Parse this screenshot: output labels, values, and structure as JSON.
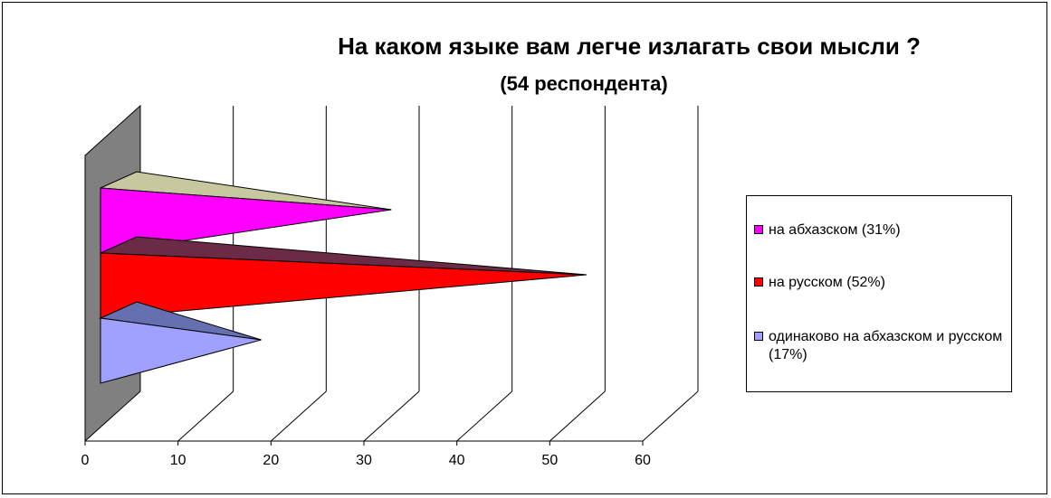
{
  "chart_data": {
    "type": "bar",
    "orientation": "horizontal",
    "style": "3d-cone",
    "title": "На каком языке вам легче излагать свои мысли ?",
    "subtitle": "(54 респондента)",
    "xlim": [
      0,
      60
    ],
    "x_ticks": [
      "0",
      "10",
      "20",
      "30",
      "40",
      "50",
      "60"
    ],
    "grid": true,
    "legend_position": "right",
    "series": [
      {
        "name": "на абхазском (31%)",
        "value": 31,
        "color": "#ff00ff",
        "top_color": "#c8c8a0"
      },
      {
        "name": "на русском (52%)",
        "value": 52,
        "color": "#ff0000",
        "top_color": "#6b2a46"
      },
      {
        "name": "одинаково на абхазском и русском (17%)",
        "value": 17,
        "color": "#a0a0ff",
        "top_color": "#6670b0"
      }
    ]
  },
  "legend": {
    "items": [
      {
        "label": "на абхазском (31%)",
        "color": "#ff00ff"
      },
      {
        "label": "на русском (52%)",
        "color": "#ff0000"
      },
      {
        "label": "одинаково на абхазском и русском (17%)",
        "color": "#a0a0ff"
      }
    ]
  },
  "colors": {
    "wall": "#808080",
    "grid": "#000000"
  }
}
